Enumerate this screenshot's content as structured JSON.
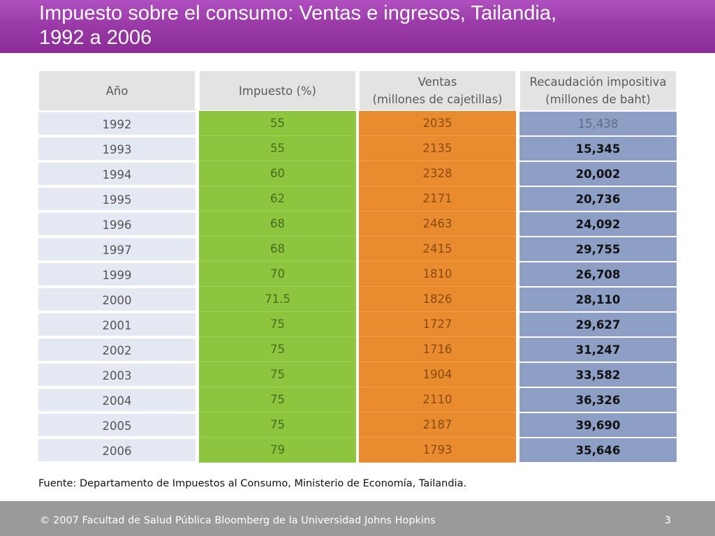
{
  "title": {
    "line1": "Impuesto sobre el consumo: Ventas e ingresos, Tailandia,",
    "line2": "1992 a 2006"
  },
  "table": {
    "headers": {
      "year": "Año",
      "tax": "Impuesto (%)",
      "sales_line1": "Ventas",
      "sales_line2": "(millones de cajetillas)",
      "revenue_line1": "Recaudación impositiva",
      "revenue_line2": "(millones de baht)"
    },
    "rows": [
      {
        "year": "1992",
        "tax": "55",
        "sales": "2035",
        "revenue": "15,438"
      },
      {
        "year": "1993",
        "tax": "55",
        "sales": "2135",
        "revenue": "15,345"
      },
      {
        "year": "1994",
        "tax": "60",
        "sales": "2328",
        "revenue": "20,002"
      },
      {
        "year": "1995",
        "tax": "62",
        "sales": "2171",
        "revenue": "20,736"
      },
      {
        "year": "1996",
        "tax": "68",
        "sales": "2463",
        "revenue": "24,092"
      },
      {
        "year": "1997",
        "tax": "68",
        "sales": "2415",
        "revenue": "29,755"
      },
      {
        "year": "1999",
        "tax": "70",
        "sales": "1810",
        "revenue": "26,708"
      },
      {
        "year": "2000",
        "tax": "71.5",
        "sales": "1826",
        "revenue": "28,110"
      },
      {
        "year": "2001",
        "tax": "75",
        "sales": "1727",
        "revenue": "29,627"
      },
      {
        "year": "2002",
        "tax": "75",
        "sales": "1716",
        "revenue": "31,247"
      },
      {
        "year": "2003",
        "tax": "75",
        "sales": "1904",
        "revenue": "33,582"
      },
      {
        "year": "2004",
        "tax": "75",
        "sales": "2110",
        "revenue": "36,326"
      },
      {
        "year": "2005",
        "tax": "75",
        "sales": "2187",
        "revenue": "39,690"
      },
      {
        "year": "2006",
        "tax": "79",
        "sales": "1793",
        "revenue": "35,646"
      }
    ]
  },
  "source": "Fuente: Departamento de Impuestos al Consumo, Ministerio de Economía, Tailandia.",
  "footer": {
    "copyright": "© 2007 Facultad de Salud Pública Bloomberg de la Universidad Johns Hopkins",
    "page_number": "3"
  },
  "colors": {
    "title_bar": "#9b3aa8",
    "year_column": "#e4e8f2",
    "tax_column": "#8dc53f",
    "sales_column": "#e98c30",
    "revenue_column": "#8e9fc5",
    "footer_bar": "#9a9a9a"
  }
}
